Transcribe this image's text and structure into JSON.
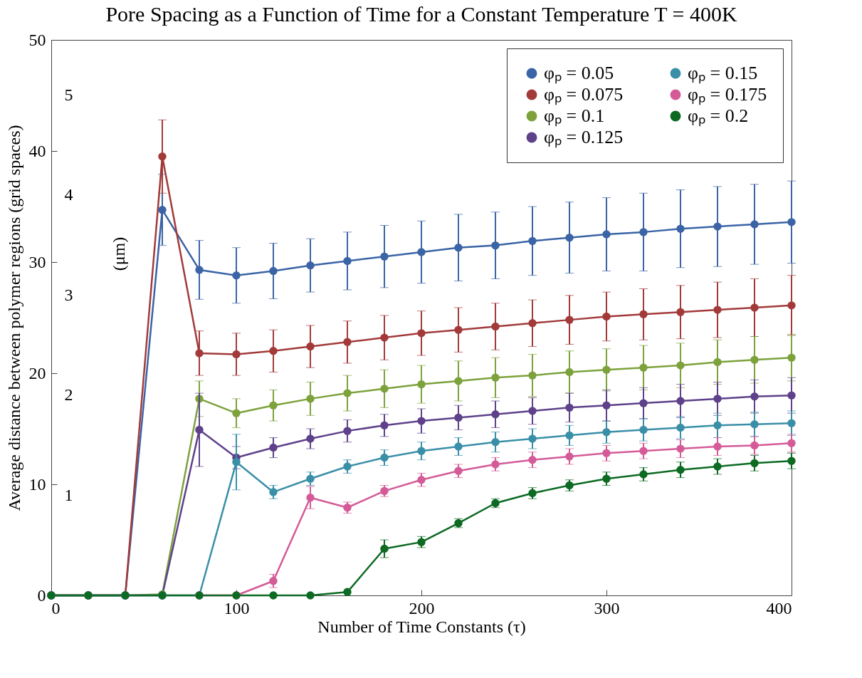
{
  "chart_data": {
    "type": "line",
    "title": "Pore Spacing as a Function of Time for a Constant Temperature T = 400K",
    "xlabel": "Number of Time Constants (τ)",
    "ylabel": "Average distance between polymer regions (grid spaces)",
    "y2label": "(μm)",
    "x": [
      0,
      20,
      40,
      60,
      80,
      100,
      120,
      140,
      160,
      180,
      200,
      220,
      240,
      260,
      280,
      300,
      320,
      340,
      360,
      380,
      400
    ],
    "series": [
      {
        "name": "φₚ = 0.05",
        "color": "#3a64a6",
        "values": [
          0,
          0,
          0,
          34.7,
          29.3,
          28.8,
          29.2,
          29.7,
          30.1,
          30.5,
          30.9,
          31.3,
          31.5,
          31.9,
          32.2,
          32.5,
          32.7,
          33.0,
          33.2,
          33.4,
          33.6
        ],
        "errors": [
          null,
          null,
          null,
          3.2,
          2.65,
          2.5,
          2.5,
          2.4,
          2.6,
          2.8,
          2.8,
          3.0,
          3.0,
          3.1,
          3.2,
          3.3,
          3.5,
          3.5,
          3.6,
          3.6,
          3.7
        ]
      },
      {
        "name": "φₚ = 0.075",
        "color": "#a33a3a",
        "values": [
          0,
          0,
          0,
          39.5,
          21.8,
          21.7,
          22.0,
          22.4,
          22.8,
          23.2,
          23.6,
          23.9,
          24.2,
          24.5,
          24.8,
          25.1,
          25.3,
          25.5,
          25.7,
          25.9,
          26.1
        ],
        "errors": [
          null,
          null,
          null,
          3.3,
          2.0,
          1.9,
          1.9,
          1.9,
          1.9,
          2.0,
          2.0,
          2.0,
          2.1,
          2.1,
          2.2,
          2.2,
          2.3,
          2.4,
          2.5,
          2.6,
          2.7
        ]
      },
      {
        "name": "φₚ = 0.1",
        "color": "#7da23c",
        "values": [
          0,
          0,
          0,
          0.1,
          17.7,
          16.4,
          17.1,
          17.7,
          18.2,
          18.6,
          19.0,
          19.3,
          19.6,
          19.8,
          20.1,
          20.3,
          20.5,
          20.7,
          21.0,
          21.2,
          21.4
        ],
        "errors": [
          null,
          null,
          null,
          null,
          1.6,
          1.3,
          1.4,
          1.5,
          1.6,
          1.7,
          1.7,
          1.8,
          1.8,
          1.9,
          1.9,
          1.9,
          2.0,
          2.0,
          2.0,
          2.1,
          2.1
        ]
      },
      {
        "name": "φₚ = 0.125",
        "color": "#5e418a",
        "values": [
          0,
          0,
          0,
          0,
          14.9,
          12.4,
          13.3,
          14.1,
          14.8,
          15.3,
          15.7,
          16.0,
          16.3,
          16.6,
          16.9,
          17.1,
          17.3,
          17.5,
          17.7,
          17.9,
          18.0
        ],
        "errors": [
          null,
          null,
          null,
          null,
          3.3,
          1.0,
          0.9,
          0.9,
          1.0,
          1.0,
          1.1,
          1.1,
          1.2,
          1.2,
          1.3,
          1.4,
          1.4,
          1.5,
          1.5,
          1.5,
          1.6
        ]
      },
      {
        "name": "φₚ = 0.15",
        "color": "#3a8fa8",
        "values": [
          0,
          0,
          0,
          0,
          0,
          12.0,
          9.3,
          10.5,
          11.6,
          12.4,
          13.0,
          13.4,
          13.8,
          14.1,
          14.4,
          14.7,
          14.9,
          15.1,
          15.3,
          15.4,
          15.5
        ],
        "errors": [
          null,
          null,
          null,
          null,
          null,
          2.5,
          0.6,
          0.6,
          0.6,
          0.7,
          0.8,
          0.8,
          0.9,
          0.9,
          0.9,
          1.0,
          1.0,
          1.0,
          1.1,
          1.1,
          1.1
        ]
      },
      {
        "name": "φₚ = 0.175",
        "color": "#d45b98",
        "values": [
          null,
          null,
          null,
          null,
          0,
          0,
          1.3,
          8.8,
          7.9,
          9.4,
          10.4,
          11.2,
          11.8,
          12.2,
          12.5,
          12.8,
          13.0,
          13.2,
          13.4,
          13.5,
          13.7
        ],
        "errors": [
          null,
          null,
          null,
          null,
          null,
          null,
          0.6,
          1.0,
          0.5,
          0.5,
          0.6,
          0.6,
          0.6,
          0.7,
          0.7,
          0.7,
          0.7,
          0.8,
          0.8,
          0.8,
          0.8
        ]
      },
      {
        "name": "φₚ = 0.2",
        "color": "#0c6a22",
        "values": [
          0,
          0,
          0,
          0,
          0,
          0,
          0,
          0,
          0.3,
          4.2,
          4.8,
          6.5,
          8.3,
          9.2,
          9.9,
          10.5,
          10.9,
          11.3,
          11.6,
          11.9,
          12.1
        ],
        "errors": [
          null,
          null,
          null,
          null,
          null,
          null,
          null,
          null,
          null,
          0.8,
          0.5,
          0.4,
          0.4,
          0.5,
          0.5,
          0.6,
          0.6,
          0.7,
          0.7,
          0.7,
          0.7
        ]
      }
    ],
    "xlim": [
      0,
      400
    ],
    "xticks": [
      0,
      100,
      200,
      300,
      400
    ],
    "ylim": [
      0,
      50
    ],
    "yticks": [
      0,
      10,
      20,
      30,
      40,
      50
    ],
    "y2lim": [
      0,
      5.55
    ],
    "y2ticks": [
      1,
      2,
      3,
      4,
      5
    ],
    "grid": false,
    "legend": "top right",
    "marker": "circle",
    "line_style": "solid"
  }
}
